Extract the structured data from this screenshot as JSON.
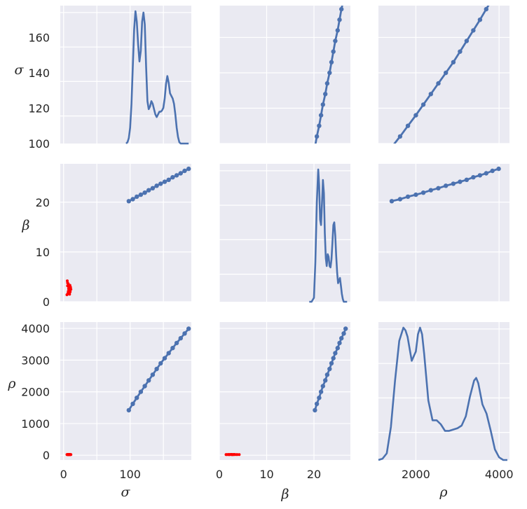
{
  "chart_data": {
    "type": "pairplot",
    "variables": [
      {
        "key": "sigma",
        "label": "σ"
      },
      {
        "key": "beta",
        "label": "β"
      },
      {
        "key": "rho",
        "label": "ρ"
      }
    ],
    "axes": {
      "sigma": {
        "lim": [
          -5,
          192
        ],
        "ticks": [
          0,
          50,
          100,
          150
        ],
        "tick_labels": [
          "0",
          "",
          "100",
          ""
        ]
      },
      "beta": {
        "lim": [
          0,
          27.7
        ],
        "ticks": [
          0,
          10,
          20
        ],
        "tick_labels": [
          "0",
          "10",
          "20"
        ]
      },
      "rho": {
        "lim": [
          -150,
          4200
        ],
        "ticks": [
          0,
          1000,
          2000,
          3000,
          4000
        ],
        "tick_labels": [
          "0",
          "1000",
          "2000",
          "3000",
          "4000"
        ]
      },
      "sigma_row0": {
        "lim": [
          100,
          178
        ],
        "ticks": [
          100,
          120,
          140,
          160
        ],
        "tick_labels": [
          "100",
          "120",
          "140",
          "160"
        ]
      },
      "rho_col2": {
        "lim": [
          1100,
          4250
        ],
        "ticks": [
          2000,
          4000
        ],
        "tick_labels": [
          "2000",
          "4000"
        ]
      }
    },
    "grid": true,
    "background": "#eaeaf2",
    "colors": {
      "main": "#4c72b0",
      "outlier": "#ff0000"
    },
    "diagonal_kde": {
      "sigma": {
        "x": [
          94,
          96,
          98,
          100,
          102,
          104,
          106,
          108,
          110,
          112,
          114,
          116,
          118,
          120,
          122,
          124,
          126,
          128,
          130,
          132,
          134,
          136,
          138,
          140,
          142,
          144,
          146,
          148,
          150,
          152,
          154,
          156,
          158,
          160,
          162,
          164,
          166,
          168,
          170,
          172,
          174,
          176,
          178,
          180,
          182,
          184,
          186,
          188
        ],
        "density": [
          0,
          0.01,
          0.04,
          0.12,
          0.3,
          0.58,
          0.86,
          1.0,
          0.92,
          0.75,
          0.62,
          0.7,
          0.92,
          0.99,
          0.9,
          0.58,
          0.32,
          0.26,
          0.28,
          0.32,
          0.3,
          0.26,
          0.22,
          0.2,
          0.22,
          0.24,
          0.24,
          0.25,
          0.27,
          0.34,
          0.45,
          0.51,
          0.46,
          0.38,
          0.36,
          0.34,
          0.3,
          0.22,
          0.12,
          0.05,
          0.01,
          0,
          0,
          0,
          0,
          0,
          0,
          0
        ]
      },
      "beta": {
        "x": [
          19.0,
          19.5,
          20.0,
          20.3,
          20.6,
          20.9,
          21.1,
          21.3,
          21.5,
          21.7,
          21.9,
          22.1,
          22.3,
          22.5,
          22.7,
          22.9,
          23.1,
          23.3,
          23.5,
          23.7,
          23.9,
          24.1,
          24.3,
          24.5,
          24.7,
          24.9,
          25.1,
          25.3,
          25.5,
          25.7,
          25.9,
          26.1,
          26.3,
          26.5,
          27.0
        ],
        "density": [
          0,
          0,
          0.03,
          0.3,
          0.75,
          1.0,
          0.88,
          0.62,
          0.58,
          0.75,
          0.92,
          0.82,
          0.52,
          0.33,
          0.27,
          0.36,
          0.34,
          0.27,
          0.26,
          0.32,
          0.44,
          0.58,
          0.6,
          0.5,
          0.35,
          0.22,
          0.14,
          0.16,
          0.18,
          0.12,
          0.06,
          0.02,
          0,
          0,
          0
        ]
      },
      "rho": {
        "x": [
          1100,
          1200,
          1300,
          1400,
          1500,
          1600,
          1700,
          1750,
          1800,
          1900,
          2000,
          2050,
          2100,
          2150,
          2200,
          2300,
          2400,
          2500,
          2600,
          2700,
          2800,
          2900,
          3000,
          3100,
          3200,
          3300,
          3400,
          3450,
          3500,
          3600,
          3700,
          3800,
          3900,
          4000,
          4100,
          4200
        ],
        "density": [
          0,
          0.01,
          0.05,
          0.25,
          0.6,
          0.9,
          1.0,
          0.98,
          0.93,
          0.75,
          0.82,
          0.95,
          1.0,
          0.95,
          0.8,
          0.45,
          0.3,
          0.3,
          0.27,
          0.22,
          0.22,
          0.23,
          0.24,
          0.26,
          0.33,
          0.48,
          0.6,
          0.62,
          0.58,
          0.42,
          0.35,
          0.22,
          0.08,
          0.02,
          0,
          0
        ]
      }
    },
    "scatter": {
      "main": {
        "sigma": [
          98,
          104,
          110,
          116,
          122,
          128,
          134,
          140,
          146,
          152,
          158,
          164,
          170,
          176,
          182,
          188
        ],
        "beta": [
          20.2,
          20.6,
          21.1,
          21.5,
          21.9,
          22.4,
          22.8,
          23.3,
          23.7,
          24.1,
          24.5,
          25.0,
          25.4,
          25.8,
          26.3,
          26.7
        ],
        "rho": [
          1420,
          1620,
          1810,
          2000,
          2180,
          2360,
          2540,
          2720,
          2900,
          3060,
          3220,
          3380,
          3540,
          3690,
          3840,
          3990
        ]
      },
      "outliers": {
        "sigma": [
          5,
          6,
          7,
          8,
          9,
          10,
          11,
          5.5,
          7.5,
          9.5,
          6.5,
          8.5,
          10.5,
          7,
          9,
          8,
          6,
          10,
          8.5,
          7.5
        ],
        "beta": [
          1.4,
          3.2,
          2.1,
          2.8,
          1.9,
          3.0,
          2.5,
          4.2,
          2.6,
          3.3,
          1.7,
          2.2,
          2.9,
          3.6,
          1.5,
          2.4,
          3.8,
          2.0,
          3.1,
          2.7
        ],
        "rho": [
          20,
          25,
          18,
          22,
          24,
          19,
          21,
          23,
          26,
          20,
          22,
          24,
          19,
          21,
          23,
          25,
          20,
          22,
          24,
          18
        ]
      }
    }
  }
}
